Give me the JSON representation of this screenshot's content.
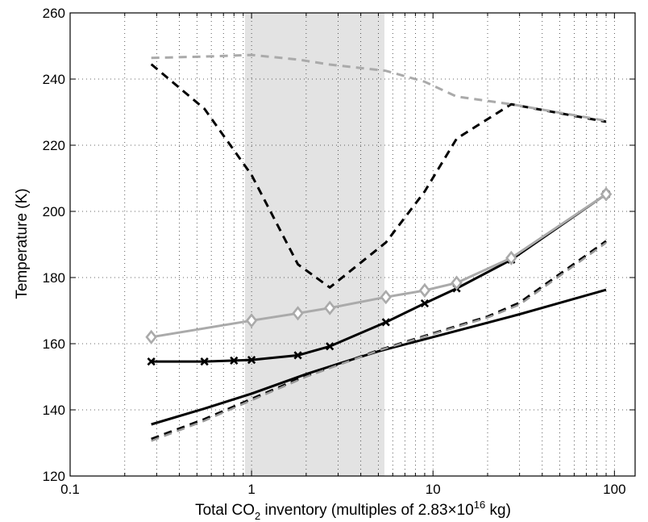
{
  "chart_data": {
    "type": "line",
    "xscale": "log",
    "xlim": [
      0.1,
      130
    ],
    "ylim": [
      120,
      260
    ],
    "grid": true,
    "x_ticks": [
      {
        "value": 0.1,
        "label": "0.1"
      },
      {
        "value": 1,
        "label": "1"
      },
      {
        "value": 10,
        "label": "10"
      },
      {
        "value": 100,
        "label": "100"
      }
    ],
    "y_ticks": [
      120,
      140,
      160,
      180,
      200,
      220,
      240,
      260
    ],
    "xlabel": {
      "prefix": "Total CO",
      "subscript": "2",
      "middle": " inventory (multiples of 2.83×10",
      "superscript": "16",
      "suffix": " kg)"
    },
    "ylabel": "Temperature (K)",
    "shaded_region": {
      "x_start": 0.92,
      "x_end": 5.4,
      "color": "#e3e3e3"
    },
    "series": [
      {
        "color": "#000000",
        "dash": "solid",
        "marker": "none",
        "width": 3,
        "points": [
          [
            0.28,
            135.6
          ],
          [
            0.55,
            140.4
          ],
          [
            1.0,
            144.9
          ],
          [
            2.0,
            150.8
          ],
          [
            3.0,
            153.9
          ],
          [
            5.0,
            157.7
          ],
          [
            10.0,
            162.0
          ],
          [
            30.0,
            168.9
          ],
          [
            90.0,
            176.3
          ]
        ]
      },
      {
        "color": "#000000",
        "dash": "solid",
        "marker": "x",
        "width": 3,
        "points": [
          [
            0.28,
            154.6
          ],
          [
            0.55,
            154.6
          ],
          [
            0.8,
            154.9
          ],
          [
            1.0,
            155.1
          ],
          [
            1.8,
            156.5
          ],
          [
            2.7,
            159.2
          ],
          [
            5.5,
            166.5
          ],
          [
            9.0,
            172.2
          ],
          [
            13.5,
            176.7
          ],
          [
            27.0,
            185.4
          ],
          [
            90.0,
            205.2
          ]
        ]
      },
      {
        "color": "#aaaaaa",
        "dash": "solid",
        "marker": "diamond",
        "width": 3,
        "points": [
          [
            0.28,
            162.0
          ],
          [
            1.0,
            167.0
          ],
          [
            1.8,
            169.2
          ],
          [
            2.7,
            170.8
          ],
          [
            5.5,
            174.1
          ],
          [
            9.0,
            176.1
          ],
          [
            13.5,
            178.4
          ],
          [
            27.0,
            185.9
          ],
          [
            90.0,
            205.2
          ]
        ]
      },
      {
        "color": "#000000",
        "dash": "dashed",
        "marker": "none",
        "width": 3,
        "points": [
          [
            0.28,
            244.5
          ],
          [
            0.55,
            231.0
          ],
          [
            1.0,
            211.0
          ],
          [
            1.8,
            184.0
          ],
          [
            2.7,
            177.0
          ],
          [
            5.5,
            190.6
          ],
          [
            9.0,
            206.0
          ],
          [
            13.5,
            222.0
          ],
          [
            27.0,
            232.4
          ],
          [
            90.0,
            227.1
          ]
        ]
      },
      {
        "color": "#aaaaaa",
        "dash": "dashed",
        "marker": "none",
        "width": 3,
        "points": [
          [
            0.28,
            246.4
          ],
          [
            0.55,
            246.8
          ],
          [
            1.0,
            247.3
          ],
          [
            1.8,
            245.9
          ],
          [
            2.7,
            244.4
          ],
          [
            5.5,
            242.5
          ],
          [
            9.0,
            239.2
          ],
          [
            13.5,
            234.7
          ],
          [
            27.0,
            232.4
          ],
          [
            90.0,
            227.4
          ]
        ]
      },
      {
        "color": "#000000",
        "dash": "dashed",
        "marker": "none",
        "width": 3,
        "points": [
          [
            0.28,
            131.2
          ],
          [
            0.55,
            137.2
          ],
          [
            1.0,
            143.3
          ],
          [
            2.0,
            150.3
          ],
          [
            3.0,
            153.7
          ],
          [
            5.0,
            158.0
          ],
          [
            10.0,
            163.1
          ],
          [
            20.0,
            168.2
          ],
          [
            30.0,
            172.4
          ],
          [
            90.0,
            191.0
          ]
        ]
      },
      {
        "color": "#999999",
        "dash": "dashed",
        "marker": "none",
        "width": 2.5,
        "points": [
          [
            0.28,
            130.6
          ],
          [
            0.55,
            136.7
          ],
          [
            1.0,
            142.9
          ],
          [
            2.0,
            150.0
          ],
          [
            3.0,
            153.5
          ],
          [
            5.0,
            157.9
          ],
          [
            10.0,
            162.9
          ],
          [
            20.0,
            167.9
          ],
          [
            30.0,
            171.8
          ],
          [
            90.0,
            190.5
          ]
        ]
      }
    ]
  }
}
